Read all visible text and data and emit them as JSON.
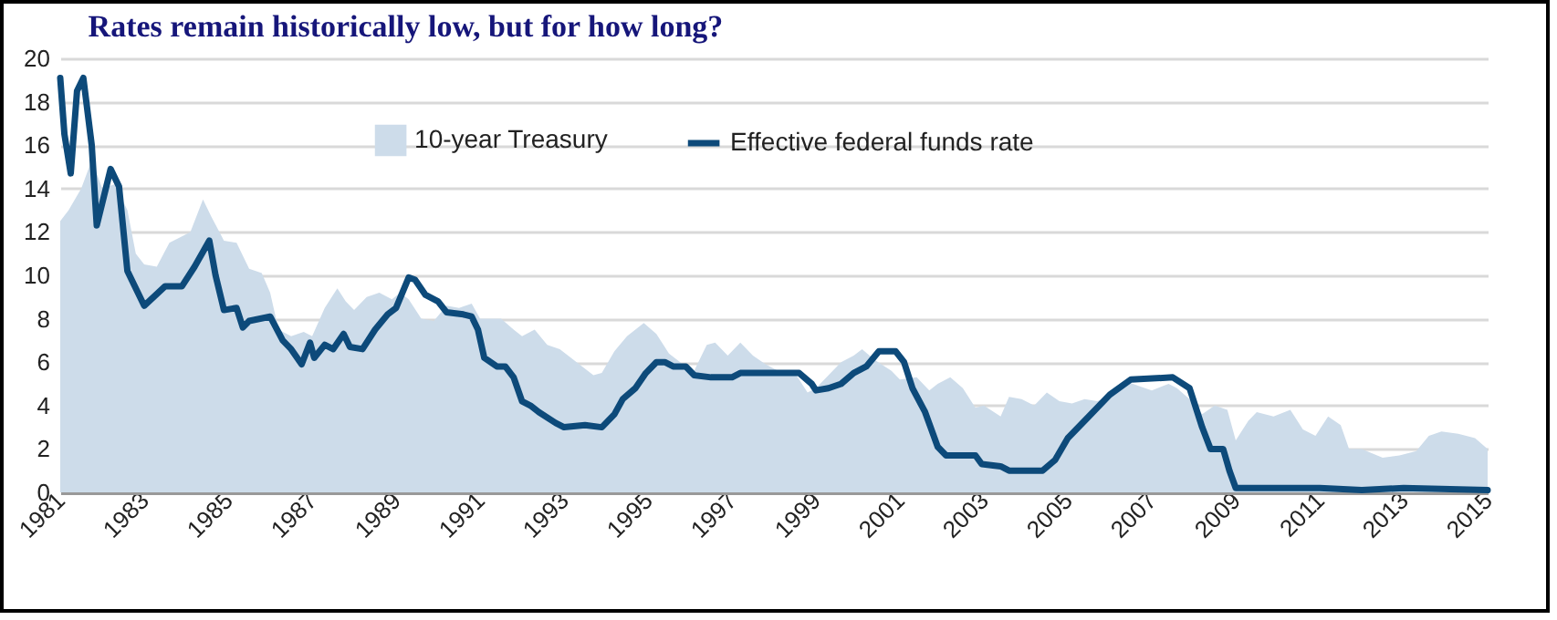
{
  "chart_data": {
    "type": "area",
    "title": "Rates remain historically low, but for how long?",
    "xlim": [
      1981,
      2015
    ],
    "xticks": [
      1981,
      1983,
      1985,
      1987,
      1989,
      1991,
      1993,
      1995,
      1997,
      1999,
      2001,
      2003,
      2005,
      2007,
      2009,
      2011,
      2013,
      2015
    ],
    "ylim": [
      0,
      20
    ],
    "yticks": [
      0,
      2,
      4,
      6,
      8,
      10,
      12,
      14,
      16,
      18,
      20
    ],
    "grid": "y",
    "legend": "top",
    "series": [
      {
        "name": "10-year Treasury",
        "color": "#cddcea",
        "x": [
          1981.0,
          1981.2,
          1981.5,
          1981.75,
          1982.0,
          1982.3,
          1982.6,
          1982.8,
          1983.0,
          1983.3,
          1983.6,
          1983.9,
          1984.1,
          1984.4,
          1984.6,
          1984.9,
          1985.2,
          1985.5,
          1985.8,
          1986.0,
          1986.2,
          1986.5,
          1986.8,
          1987.0,
          1987.3,
          1987.6,
          1987.8,
          1988.0,
          1988.3,
          1988.6,
          1988.9,
          1989.1,
          1989.3,
          1989.6,
          1989.9,
          1990.2,
          1990.5,
          1990.8,
          1991.0,
          1991.5,
          1991.8,
          1992.0,
          1992.3,
          1992.6,
          1992.9,
          1993.3,
          1993.7,
          1993.9,
          1994.2,
          1994.5,
          1994.9,
          1995.2,
          1995.5,
          1995.9,
          1996.1,
          1996.4,
          1996.6,
          1996.9,
          1997.2,
          1997.5,
          1997.8,
          1998.1,
          1998.5,
          1998.8,
          1999.0,
          1999.3,
          1999.6,
          1999.9,
          2000.1,
          2000.4,
          2000.8,
          2001.0,
          2001.4,
          2001.7,
          2001.9,
          2002.2,
          2002.5,
          2002.8,
          2003.0,
          2003.4,
          2003.6,
          2003.9,
          2004.2,
          2004.5,
          2004.8,
          2005.1,
          2005.4,
          2005.7,
          2006.0,
          2006.4,
          2006.7,
          2007.0,
          2007.4,
          2007.6,
          2007.9,
          2008.2,
          2008.5,
          2008.8,
          2009.0,
          2009.3,
          2009.5,
          2009.9,
          2010.3,
          2010.6,
          2010.9,
          2011.2,
          2011.5,
          2011.7,
          2012.0,
          2012.5,
          2012.9,
          2013.3,
          2013.6,
          2013.9,
          2014.3,
          2014.7,
          2015.0
        ],
        "values": [
          12.5,
          13.0,
          14.0,
          15.3,
          14.0,
          14.2,
          13.0,
          11.0,
          10.5,
          10.4,
          11.5,
          11.8,
          12.0,
          13.5,
          12.7,
          11.6,
          11.5,
          10.3,
          10.1,
          9.2,
          7.5,
          7.2,
          7.4,
          7.2,
          8.5,
          9.4,
          8.8,
          8.4,
          9.0,
          9.2,
          8.9,
          9.2,
          8.9,
          8.0,
          7.9,
          8.6,
          8.5,
          8.7,
          8.0,
          8.0,
          7.5,
          7.2,
          7.5,
          6.8,
          6.6,
          6.0,
          5.4,
          5.5,
          6.5,
          7.2,
          7.8,
          7.3,
          6.4,
          5.8,
          5.6,
          6.8,
          6.9,
          6.3,
          6.9,
          6.3,
          5.9,
          5.6,
          5.5,
          4.6,
          4.8,
          5.4,
          6.0,
          6.3,
          6.6,
          6.1,
          5.6,
          5.2,
          5.3,
          4.7,
          5.0,
          5.3,
          4.8,
          3.9,
          4.0,
          3.5,
          4.4,
          4.3,
          4.0,
          4.6,
          4.2,
          4.1,
          4.3,
          4.2,
          4.4,
          5.1,
          4.9,
          4.7,
          5.0,
          4.8,
          4.3,
          3.6,
          4.0,
          3.8,
          2.4,
          3.3,
          3.7,
          3.5,
          3.8,
          2.9,
          2.6,
          3.5,
          3.1,
          2.0,
          2.0,
          1.6,
          1.7,
          1.9,
          2.6,
          2.8,
          2.7,
          2.5,
          2.0
        ]
      },
      {
        "name": "Effective federal funds rate",
        "type": "line",
        "color": "#0d4a7a",
        "x": [
          1981.0,
          1981.1,
          1981.25,
          1981.4,
          1981.55,
          1981.75,
          1981.87,
          1982.2,
          1982.4,
          1982.6,
          1983.0,
          1983.5,
          1983.9,
          1984.2,
          1984.55,
          1984.7,
          1984.9,
          1985.2,
          1985.35,
          1985.5,
          1986.0,
          1986.3,
          1986.5,
          1986.75,
          1986.95,
          1987.05,
          1987.3,
          1987.5,
          1987.75,
          1987.9,
          1988.2,
          1988.5,
          1988.8,
          1989.0,
          1989.3,
          1989.45,
          1989.7,
          1990.0,
          1990.2,
          1990.6,
          1990.8,
          1990.95,
          1991.1,
          1991.4,
          1991.6,
          1991.8,
          1992.0,
          1992.2,
          1992.4,
          1992.8,
          1993.0,
          1993.5,
          1993.9,
          1994.0,
          1994.2,
          1994.4,
          1994.7,
          1994.95,
          1995.2,
          1995.4,
          1995.6,
          1995.9,
          1996.1,
          1996.5,
          1997.0,
          1997.2,
          1998.0,
          1998.6,
          1998.9,
          1999.0,
          1999.3,
          1999.6,
          1999.9,
          2000.2,
          2000.5,
          2000.9,
          2001.1,
          2001.3,
          2001.6,
          2001.9,
          2002.1,
          2002.8,
          2002.95,
          2003.4,
          2003.6,
          2004.4,
          2004.7,
          2005.0,
          2005.5,
          2006.0,
          2006.5,
          2007.5,
          2007.9,
          2008.0,
          2008.2,
          2008.4,
          2008.7,
          2008.85,
          2009.0,
          2010.0,
          2011.0,
          2012.0,
          2013.0,
          2015.0
        ],
        "values": [
          19.1,
          16.5,
          14.7,
          18.5,
          19.1,
          16.0,
          12.3,
          14.9,
          14.1,
          10.2,
          8.6,
          9.5,
          9.5,
          10.4,
          11.6,
          10.0,
          8.4,
          8.5,
          7.6,
          7.9,
          8.1,
          7.0,
          6.6,
          5.9,
          6.9,
          6.2,
          6.8,
          6.6,
          7.3,
          6.7,
          6.6,
          7.5,
          8.2,
          8.5,
          9.9,
          9.8,
          9.1,
          8.8,
          8.3,
          8.2,
          8.1,
          7.5,
          6.2,
          5.8,
          5.8,
          5.3,
          4.2,
          4.0,
          3.7,
          3.2,
          3.0,
          3.1,
          3.0,
          3.2,
          3.6,
          4.3,
          4.8,
          5.5,
          6.0,
          6.0,
          5.8,
          5.8,
          5.4,
          5.3,
          5.3,
          5.5,
          5.5,
          5.5,
          5.0,
          4.7,
          4.8,
          5.0,
          5.5,
          5.8,
          6.5,
          6.5,
          6.0,
          4.8,
          3.7,
          2.1,
          1.7,
          1.7,
          1.3,
          1.2,
          1.0,
          1.0,
          1.5,
          2.5,
          3.5,
          4.5,
          5.2,
          5.3,
          4.8,
          4.2,
          3.0,
          2.0,
          2.0,
          1.0,
          0.2,
          0.2,
          0.2,
          0.1,
          0.2,
          0.1
        ]
      }
    ]
  }
}
